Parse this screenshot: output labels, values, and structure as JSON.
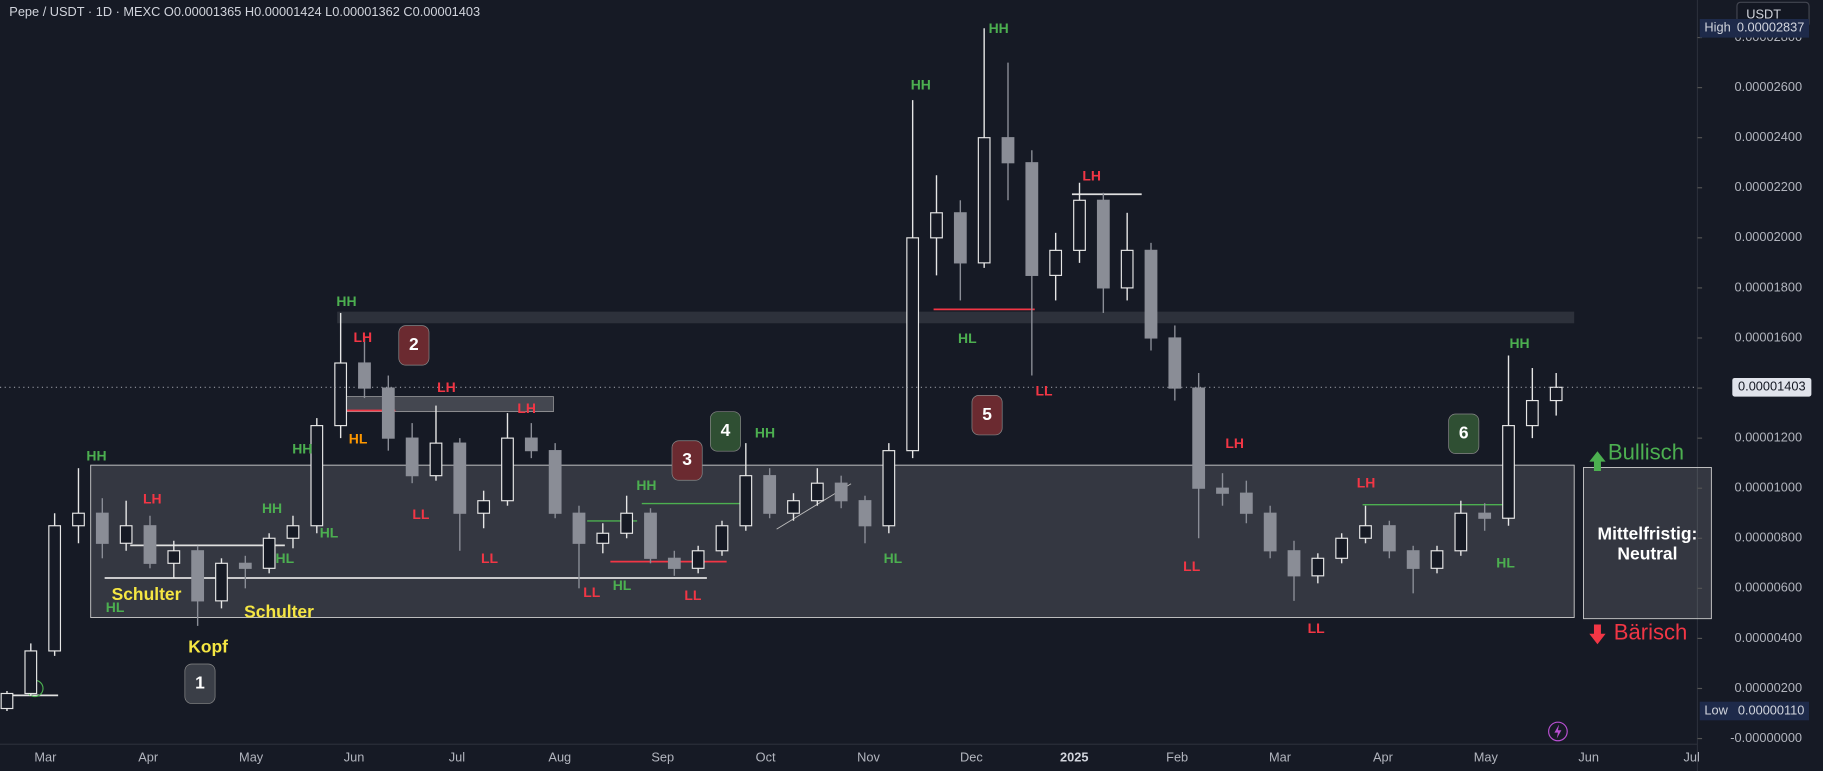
{
  "chart_data": {
    "type": "candlestick",
    "title": "Pepe / USDT · 1D · MEXC  O0.00001365  H0.00001424  L0.00001362  C0.00001403",
    "currency": "USDT",
    "open": [
      1.2e-06,
      1.8e-06,
      3.5e-06,
      8.5e-06,
      9e-06,
      7.8e-06,
      8.5e-06,
      7e-06,
      7.5e-06,
      5.5e-06,
      7e-06,
      6.8e-06,
      8e-06,
      8.5e-06,
      1.25e-05,
      1.5e-05,
      1.4e-05,
      1.2e-05,
      1.05e-05,
      1.18e-05,
      9e-06,
      9.5e-06,
      1.2e-05,
      1.15e-05,
      9e-06,
      7.8e-06,
      8.2e-06,
      9e-06,
      7.2e-06,
      6.8e-06,
      7.5e-06,
      8.5e-06,
      1.05e-05,
      9e-06,
      9.5e-06,
      1.02e-05,
      9.5e-06,
      8.5e-06,
      1.15e-05,
      2e-05,
      2.1e-05,
      1.9e-05,
      2.4e-05,
      2.3e-05,
      1.85e-05,
      1.95e-05,
      2.15e-05,
      1.8e-05,
      1.95e-05,
      1.6e-05,
      1.4e-05,
      1e-05,
      9.8e-06,
      9e-06,
      7.5e-06,
      6.5e-06,
      7.2e-06,
      8e-06,
      8.5e-06,
      7.5e-06,
      6.8e-06,
      7.5e-06,
      9e-06,
      8.8e-06,
      1.25e-05,
      1.35e-05
    ],
    "high": [
      1.9e-06,
      3.8e-06,
      9e-06,
      1.08e-05,
      9.6e-06,
      9.5e-06,
      8.9e-06,
      7.9e-06,
      7.7e-06,
      7.2e-06,
      7.3e-06,
      8.2e-06,
      8.9e-06,
      1.28e-05,
      1.7e-05,
      1.6e-05,
      1.45e-05,
      1.26e-05,
      1.33e-05,
      1.2e-05,
      9.9e-06,
      1.3e-05,
      1.26e-05,
      1.18e-05,
      9.3e-06,
      8.6e-06,
      9.7e-06,
      9.2e-06,
      7.5e-06,
      7.7e-06,
      8.7e-06,
      1.18e-05,
      1.08e-05,
      9.8e-06,
      1.08e-05,
      1.05e-05,
      9.7e-06,
      1.18e-05,
      2.55e-05,
      2.25e-05,
      2.15e-05,
      2.837e-05,
      2.7e-05,
      2.35e-05,
      2.02e-05,
      2.22e-05,
      2.18e-05,
      2.1e-05,
      1.98e-05,
      1.65e-05,
      1.46e-05,
      1.06e-05,
      1.03e-05,
      9.3e-06,
      7.9e-06,
      7.4e-06,
      8.2e-06,
      9.3e-06,
      8.7e-06,
      7.7e-06,
      7.7e-06,
      9.5e-06,
      9.4e-06,
      1.53e-05,
      1.48e-05,
      1.46e-05
    ],
    "low": [
      1.1e-06,
      1.7e-06,
      3.3e-06,
      7.8e-06,
      7.2e-06,
      7.5e-06,
      6.8e-06,
      6.4e-06,
      4.5e-06,
      5.2e-06,
      6e-06,
      6.6e-06,
      7.6e-06,
      8.2e-06,
      1.2e-05,
      1.36e-05,
      1.15e-05,
      1.02e-05,
      1.03e-05,
      7.5e-06,
      8.4e-06,
      9.3e-06,
      1.12e-05,
      8.8e-06,
      6e-06,
      7.4e-06,
      8e-06,
      7e-06,
      6.5e-06,
      6.6e-06,
      7.3e-06,
      8.3e-06,
      8.8e-06,
      8.7e-06,
      9.3e-06,
      9.2e-06,
      7.8e-06,
      8.2e-06,
      1.12e-05,
      1.85e-05,
      1.75e-05,
      1.88e-05,
      2.15e-05,
      1.45e-05,
      1.75e-05,
      1.9e-05,
      1.7e-05,
      1.75e-05,
      1.55e-05,
      1.35e-05,
      8e-06,
      9.3e-06,
      8.6e-06,
      7.2e-06,
      5.5e-06,
      6.2e-06,
      7e-06,
      7.8e-06,
      7.2e-06,
      5.8e-06,
      6.6e-06,
      7.3e-06,
      8.3e-06,
      8.5e-06,
      1.2e-05,
      1.29e-05
    ],
    "close": [
      1.8e-06,
      3.5e-06,
      8.5e-06,
      9e-06,
      7.8e-06,
      8.5e-06,
      7e-06,
      7.5e-06,
      5.5e-06,
      7e-06,
      6.8e-06,
      8e-06,
      8.5e-06,
      1.25e-05,
      1.5e-05,
      1.4e-05,
      1.2e-05,
      1.05e-05,
      1.18e-05,
      9e-06,
      9.5e-06,
      1.2e-05,
      1.15e-05,
      9e-06,
      7.8e-06,
      8.2e-06,
      9e-06,
      7.2e-06,
      6.8e-06,
      7.5e-06,
      8.5e-06,
      1.05e-05,
      9e-06,
      9.5e-06,
      1.02e-05,
      9.5e-06,
      8.5e-06,
      1.15e-05,
      2e-05,
      2.1e-05,
      1.9e-05,
      2.4e-05,
      2.3e-05,
      1.85e-05,
      1.95e-05,
      2.15e-05,
      1.8e-05,
      1.95e-05,
      1.6e-05,
      1.4e-05,
      1e-05,
      9.8e-06,
      9e-06,
      7.5e-06,
      6.5e-06,
      7.2e-06,
      8e-06,
      8.5e-06,
      7.5e-06,
      6.8e-06,
      7.5e-06,
      9e-06,
      8.8e-06,
      1.25e-05,
      1.35e-05,
      1.403e-05
    ],
    "categories": [
      "Mar",
      "Apr",
      "May",
      "Jun",
      "Jul",
      "Aug",
      "Sep",
      "Oct",
      "Nov",
      "Dec",
      "2025",
      "Feb",
      "Mar",
      "Apr",
      "May",
      "Jun",
      "Jul"
    ],
    "ylim": [
      -4.6e-07,
      2.95e-05
    ],
    "yticks": [
      {
        "value": 0,
        "label": "-0.00000000"
      },
      {
        "value": 2e-06,
        "label": "0.00000200"
      },
      {
        "value": 4e-06,
        "label": "0.00000400"
      },
      {
        "value": 6e-06,
        "label": "0.00000600"
      },
      {
        "value": 8e-06,
        "label": "0.00000800"
      },
      {
        "value": 1e-05,
        "label": "0.00001000"
      },
      {
        "value": 1.2e-05,
        "label": "0.00001200"
      },
      {
        "value": 1.4e-05,
        "label": "0.00001400"
      },
      {
        "value": 1.6e-05,
        "label": "0.00001600"
      },
      {
        "value": 1.8e-05,
        "label": "0.00001800"
      },
      {
        "value": 2e-05,
        "label": "0.00002000"
      },
      {
        "value": 2.2e-05,
        "label": "0.00002200"
      },
      {
        "value": 2.4e-05,
        "label": "0.00002400"
      },
      {
        "value": 2.6e-05,
        "label": "0.00002600"
      },
      {
        "value": 2.8e-05,
        "label": "0.00002800"
      }
    ],
    "high_marker": {
      "tag": "High",
      "value": 2.837e-05,
      "label": "0.00002837"
    },
    "low_marker": {
      "tag": "Low",
      "value": 1.1e-06,
      "label": "0.00000110"
    },
    "last_marker": {
      "value": 1.403e-05,
      "label": "0.00001403"
    },
    "annotations": [
      "HH",
      "LH",
      "HL",
      "Schulter",
      "Kopf",
      "Schulter",
      "1",
      "HH",
      "HL",
      "HL",
      "HH",
      "HH",
      "LH",
      "HL",
      "2",
      "LH",
      "LH",
      "LL",
      "LL",
      "LL",
      "HL",
      "HH",
      "3",
      "LL",
      "4",
      "HH",
      "HL",
      "HH",
      "HL",
      "HH",
      "5",
      "LL",
      "LH",
      "LH",
      "LL",
      "LL",
      "LH",
      "6",
      "HL",
      "HH"
    ],
    "bullish": "Bullisch",
    "bearish": "Bärisch",
    "outlook": [
      "Mittelfristig:",
      "Neutral"
    ]
  }
}
